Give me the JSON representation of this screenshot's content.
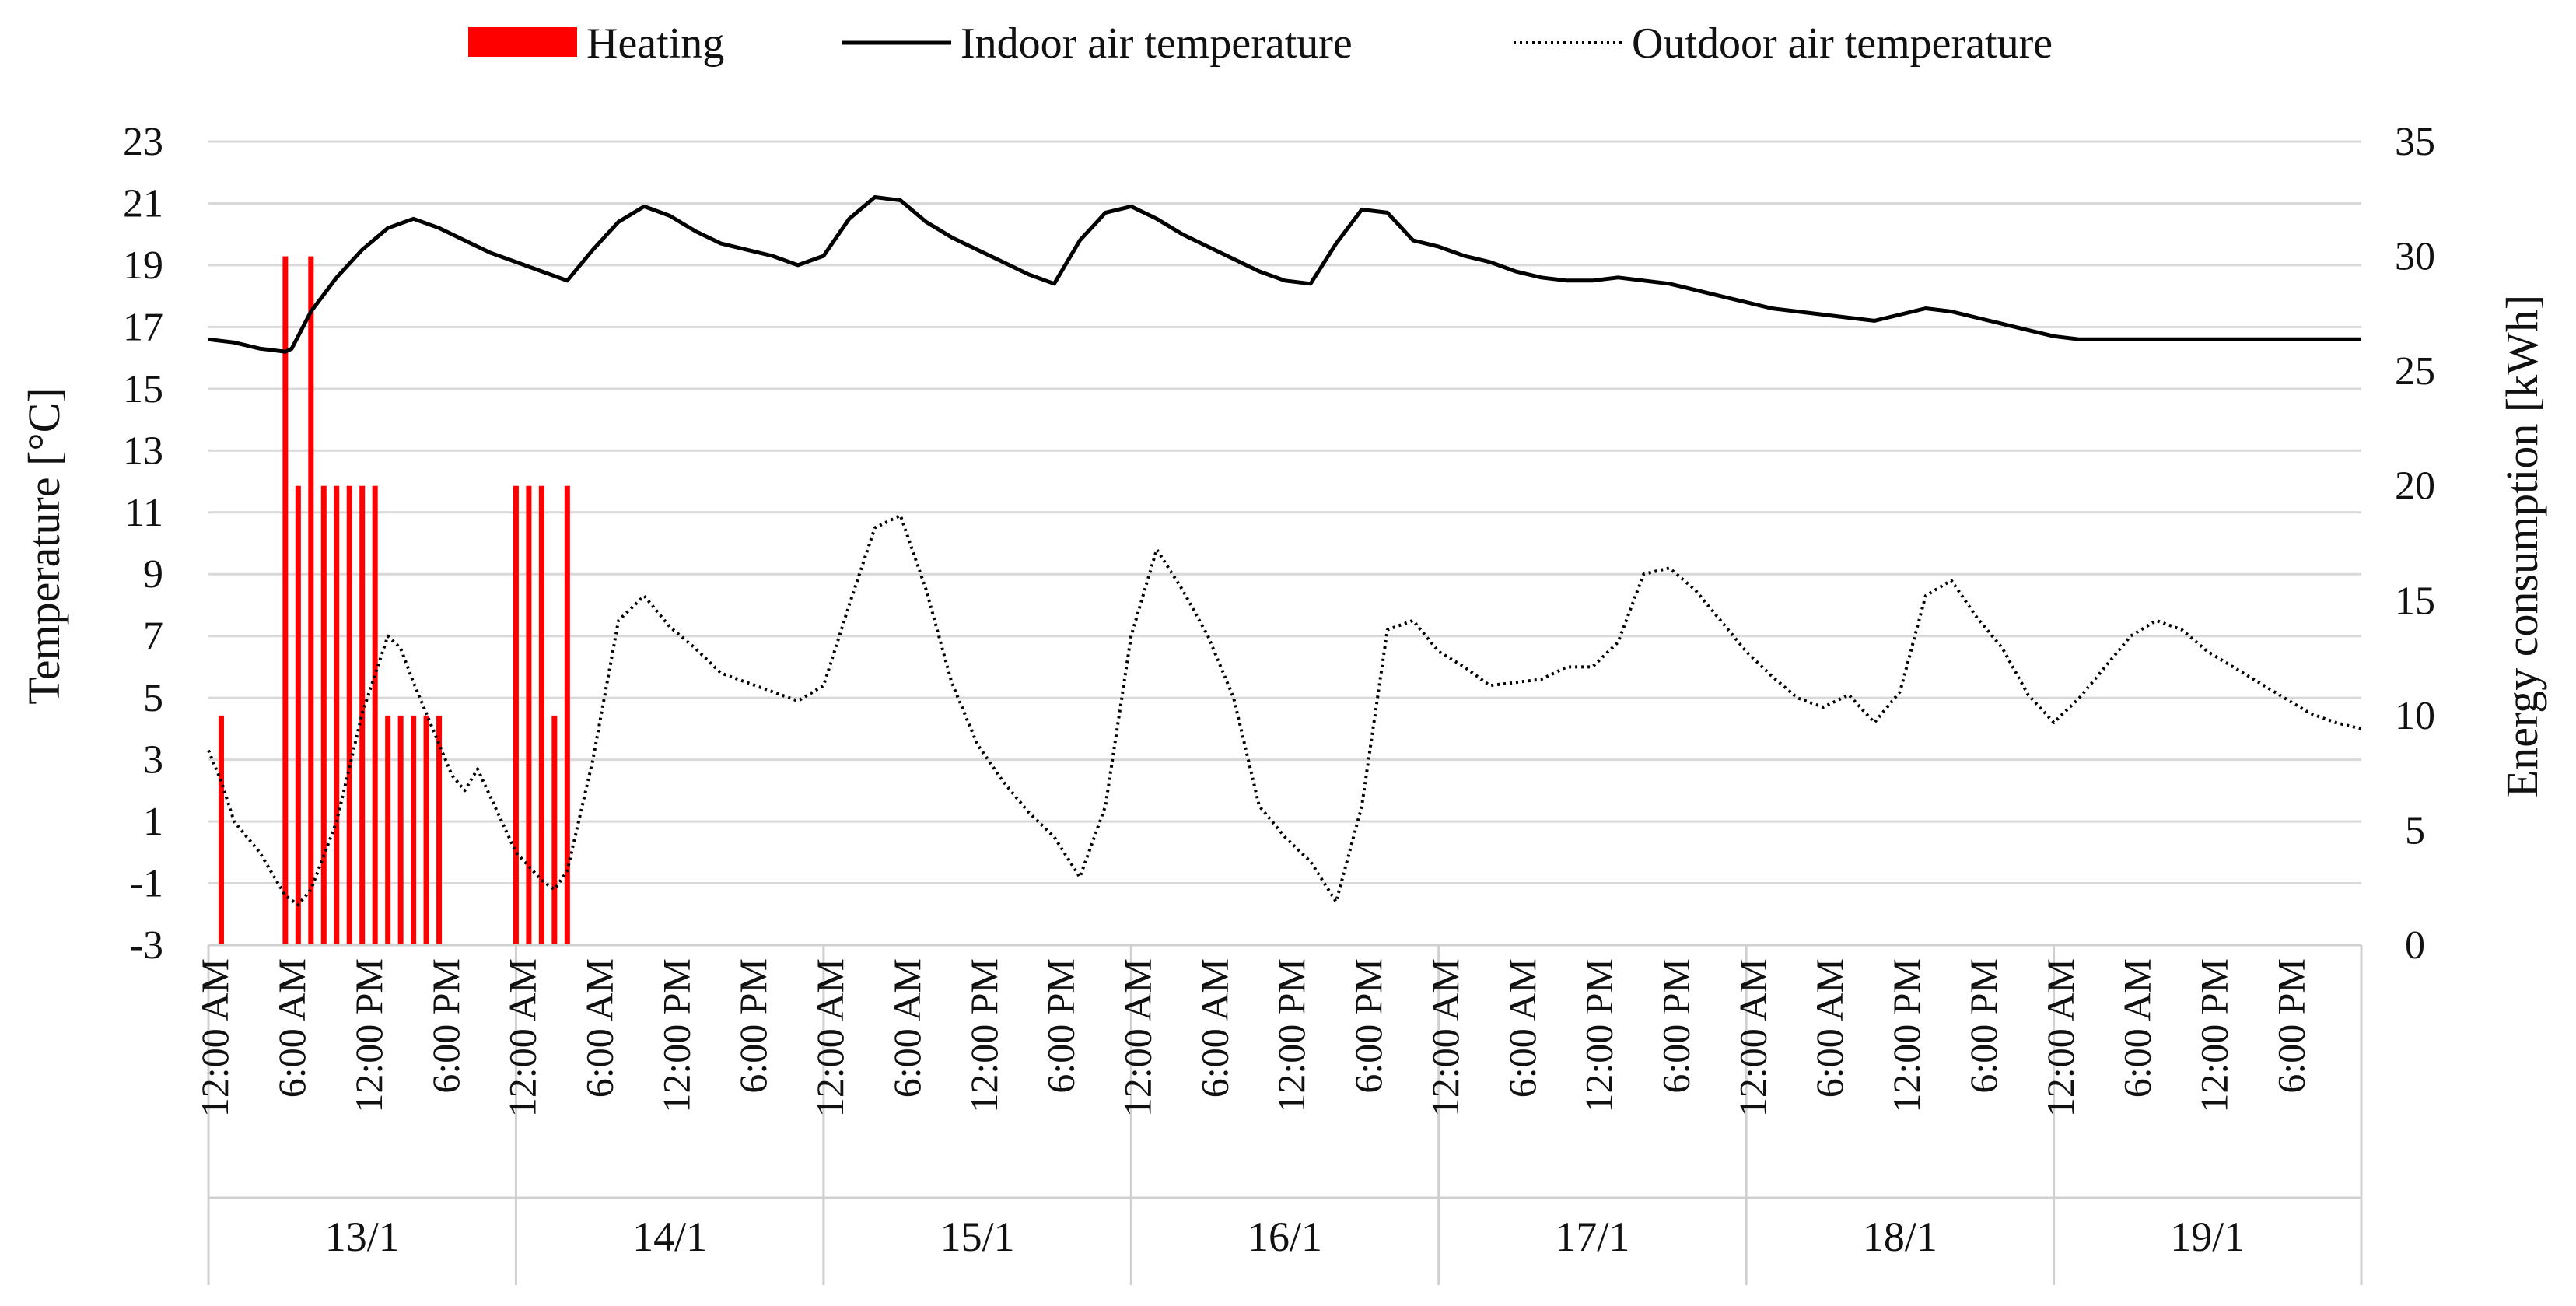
{
  "chart_data": {
    "type": "bar+line",
    "title": "",
    "ylabel_left": "Temperature [°C]",
    "ylabel_right": "Energy consumption [kWh]",
    "ylim_left": [
      -3,
      23
    ],
    "ylim_right": [
      0,
      35
    ],
    "yticks_left": [
      "23",
      "21",
      "19",
      "17",
      "15",
      "13",
      "11",
      "9",
      "7",
      "5",
      "3",
      "1",
      "-1",
      "-3"
    ],
    "yticks_right": [
      "35",
      "30",
      "25",
      "20",
      "15",
      "10",
      "5",
      "0"
    ],
    "xlim_hours": [
      0,
      168
    ],
    "x_time_labels": [
      "12:00 AM",
      "6:00 AM",
      "12:00 PM",
      "6:00 PM"
    ],
    "x_days": [
      "13/1",
      "14/1",
      "15/1",
      "16/1",
      "17/1",
      "18/1",
      "19/1"
    ],
    "legend_position": "top",
    "legend": [
      {
        "name": "Heating",
        "style": "bar"
      },
      {
        "name": "Indoor air temperature",
        "style": "solid"
      },
      {
        "name": "Outdoor air temperature",
        "style": "dotted"
      }
    ],
    "colors": {
      "heating": "#ff0000",
      "indoor": "#000000",
      "outdoor": "#000000",
      "grid": "#d9d9d9"
    },
    "heating_bars": {
      "unit": "kWh",
      "hours": [
        1,
        6,
        7,
        8,
        9,
        10,
        11,
        12,
        13,
        14,
        15,
        16,
        17,
        18,
        24,
        25,
        26,
        27,
        28
      ],
      "values": [
        10,
        30,
        20,
        30,
        20,
        20,
        20,
        20,
        20,
        10,
        10,
        10,
        10,
        10,
        20,
        20,
        20,
        10,
        20
      ]
    },
    "indoor_air_temperature": {
      "unit": "°C",
      "x": [
        0,
        2,
        4,
        6,
        6.5,
        8,
        10,
        12,
        14,
        16,
        18,
        20,
        22,
        24,
        26,
        28,
        30,
        32,
        34,
        36,
        38,
        40,
        42,
        44,
        46,
        48,
        50,
        52,
        54,
        56,
        58,
        60,
        62,
        64,
        66,
        68,
        70,
        72,
        74,
        76,
        78,
        80,
        82,
        84,
        86,
        88,
        90,
        92,
        94,
        96,
        98,
        100,
        102,
        104,
        106,
        108,
        110,
        112,
        114,
        116,
        118,
        120,
        122,
        124,
        126,
        128,
        130,
        132,
        134,
        136,
        138,
        140,
        142,
        144,
        146,
        148,
        150,
        152,
        154,
        156,
        158,
        160,
        162,
        164,
        166,
        168
      ],
      "y": [
        16.6,
        16.5,
        16.3,
        16.2,
        16.3,
        17.5,
        18.6,
        19.5,
        20.2,
        20.5,
        20.2,
        19.8,
        19.4,
        19.1,
        18.8,
        18.5,
        19.5,
        20.4,
        20.9,
        20.6,
        20.1,
        19.7,
        19.5,
        19.3,
        19.0,
        19.3,
        20.5,
        21.2,
        21.1,
        20.4,
        19.9,
        19.5,
        19.1,
        18.7,
        18.4,
        19.8,
        20.7,
        20.9,
        20.5,
        20.0,
        19.6,
        19.2,
        18.8,
        18.5,
        18.4,
        19.7,
        20.8,
        20.7,
        19.8,
        19.6,
        19.3,
        19.1,
        18.8,
        18.6,
        18.5,
        18.5,
        18.6,
        18.5,
        18.4,
        18.2,
        18.0,
        17.8,
        17.6,
        17.5,
        17.4,
        17.3,
        17.2,
        17.4,
        17.6,
        17.5,
        17.3,
        17.1,
        16.9,
        16.7,
        16.6,
        16.6,
        16.6,
        16.6,
        16.6,
        16.6,
        16.6,
        16.6,
        16.6,
        16.6,
        16.6,
        16.6
      ]
    },
    "outdoor_air_temperature": {
      "unit": "°C",
      "x": [
        0,
        1,
        2,
        4,
        6,
        7,
        8,
        10,
        12,
        14,
        15,
        16,
        18,
        19,
        20,
        21,
        22,
        24,
        26,
        27,
        28,
        30,
        32,
        34,
        36,
        38,
        40,
        42,
        44,
        46,
        48,
        50,
        52,
        54,
        56,
        57,
        58,
        60,
        62,
        64,
        66,
        68,
        70,
        72,
        74,
        76,
        78,
        80,
        82,
        84,
        86,
        88,
        90,
        92,
        94,
        96,
        98,
        100,
        102,
        104,
        106,
        108,
        110,
        112,
        114,
        116,
        118,
        120,
        122,
        124,
        126,
        128,
        130,
        132,
        134,
        136,
        138,
        140,
        142,
        144,
        146,
        148,
        150,
        152,
        154,
        156,
        158,
        160,
        162,
        164,
        166,
        168
      ],
      "y": [
        3.3,
        2.3,
        1.0,
        0.0,
        -1.4,
        -1.7,
        -1.2,
        1.0,
        4.5,
        7.0,
        6.6,
        5.5,
        3.5,
        2.5,
        2.0,
        2.7,
        1.8,
        0.0,
        -0.9,
        -1.2,
        -0.6,
        3.0,
        7.5,
        8.3,
        7.3,
        6.6,
        5.8,
        5.5,
        5.2,
        4.9,
        5.4,
        8.0,
        10.5,
        10.9,
        8.5,
        7.0,
        5.5,
        3.5,
        2.3,
        1.3,
        0.5,
        -0.8,
        1.5,
        7.0,
        9.8,
        8.5,
        7.0,
        5.0,
        1.5,
        0.5,
        -0.3,
        -1.6,
        1.5,
        7.2,
        7.5,
        6.5,
        6.0,
        5.4,
        5.5,
        5.6,
        6.0,
        6.0,
        6.8,
        9.0,
        9.2,
        8.5,
        7.5,
        6.5,
        5.7,
        5.0,
        4.7,
        5.1,
        4.2,
        5.2,
        8.3,
        8.8,
        7.6,
        6.6,
        5.1,
        4.2,
        5.0,
        6.0,
        7.0,
        7.5,
        7.2,
        6.5,
        6.0,
        5.5,
        5.0,
        4.5,
        4.2,
        4.0
      ]
    }
  }
}
